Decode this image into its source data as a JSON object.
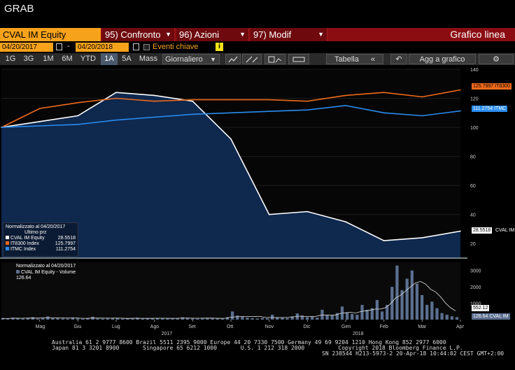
{
  "window": {
    "title": "GRAB"
  },
  "command": {
    "ticker": "CVAL IM Equity",
    "menus": [
      {
        "label": "95) Confronto"
      },
      {
        "label": "96) Azioni"
      },
      {
        "label": "97) Modif"
      }
    ],
    "chart_type": "Grafico linea"
  },
  "dates": {
    "start": "04/20/2017",
    "separator": "-",
    "end": "04/20/2018",
    "events_label": "Eventi chiave",
    "info_icon": "i"
  },
  "toolbar": {
    "periods": [
      "1G",
      "3G",
      "1M",
      "6M",
      "YTD",
      "1A",
      "5A",
      "Mass"
    ],
    "selected_period": "1A",
    "frequency": "Giornaliero",
    "table_label": "Tabella",
    "add_label": "Agg a grafico"
  },
  "legend_main": {
    "header": "Normalizzato al 04/20/2017",
    "subheader": "Ultimo prz",
    "items": [
      {
        "name": "CVAL IM Equity",
        "value": "28.5518",
        "color": "#ffffff"
      },
      {
        "name": "IT8300 Index",
        "value": "125.7997",
        "color": "#f26a1b"
      },
      {
        "name": "ITMC Index",
        "value": "111.2754",
        "color": "#2a8cf0"
      }
    ]
  },
  "legend_volume": {
    "header": "Normalizzato al 04/20/2017",
    "items": [
      {
        "name": "CVAL IM Equity - Volume",
        "value": "126.64"
      }
    ]
  },
  "right_labels": {
    "it8300": "125.7997 IT8300",
    "itmc": "111.2754 ITMC",
    "cval": "28.5518",
    "cval_suffix": "CVAL IM",
    "vol_ma": "552.12",
    "vol": "126.64 CVAL IM"
  },
  "colors": {
    "cval": "#ffffff",
    "it8300": "#f26a1b",
    "itmc": "#2a8cf0",
    "area": "#0f2a52",
    "volume": "#5b6f8f"
  },
  "chart_data": [
    {
      "type": "line",
      "title": "",
      "x": [
        "Apr",
        "Mag",
        "Giu",
        "Lug",
        "Ago",
        "Set",
        "Ott",
        "Nov",
        "Dic",
        "Gen",
        "Feb",
        "Mar",
        "Apr"
      ],
      "x_year_labels": [
        "2017",
        "2018"
      ],
      "ylim": [
        10,
        140
      ],
      "y_ticks": [
        20,
        40,
        60,
        80,
        100,
        120,
        140
      ],
      "series": [
        {
          "name": "CVAL IM Equity",
          "values": [
            100,
            104,
            108,
            124,
            122,
            118,
            92,
            40,
            42,
            35,
            22,
            24,
            28.55
          ]
        },
        {
          "name": "IT8300 Index",
          "values": [
            100,
            113,
            117,
            120,
            118,
            119,
            119,
            119,
            118,
            122,
            124,
            121,
            125.8
          ]
        },
        {
          "name": "ITMC Index",
          "values": [
            100,
            101,
            102,
            105,
            107,
            109,
            110,
            111,
            112,
            115,
            110,
            108,
            111.28
          ]
        }
      ]
    },
    {
      "type": "bar",
      "title": "",
      "series_name": "CVAL IM Equity - Volume",
      "ylim": [
        0,
        3500
      ],
      "y_ticks": [
        1000,
        2000,
        3000
      ],
      "values": [
        80,
        60,
        120,
        90,
        70,
        110,
        150,
        60,
        80,
        200,
        100,
        90,
        70,
        60,
        130,
        80,
        60,
        90,
        180,
        70,
        60,
        80,
        100,
        90,
        60,
        70,
        80,
        120,
        60,
        70,
        90,
        100,
        80,
        70,
        60,
        90,
        140,
        110,
        80,
        60,
        70,
        100,
        90,
        80,
        60,
        150,
        500,
        250,
        180,
        120,
        90,
        70,
        100,
        80,
        300,
        150,
        120,
        90,
        200,
        380,
        250,
        150,
        180,
        120,
        600,
        300,
        250,
        400,
        800,
        450,
        350,
        300,
        900,
        600,
        700,
        1200,
        500,
        900,
        2000,
        3300,
        1800,
        2500,
        3000,
        2200,
        1500,
        900,
        1100,
        700,
        400,
        300,
        200,
        150
      ],
      "moving_average_last": 552.12,
      "last": 126.64
    }
  ],
  "footer": {
    "line1": "Australia 61 2 9777 8600 Brazil 5511 2395 9000 Europe 44 20 7330 7500 Germany 49 69 9204 1210 Hong Kong 852 2977 6000",
    "line2": "Japan 81 3 3201 8900       Singapore 65 6212 1000       U.S. 1 212 318 2000          Copyright 2018 Bloomberg Finance L.P.",
    "line3": "SN 238544 H213-5973-2 20-Apr-18 10:44:02 CEST GMT+2:00"
  }
}
